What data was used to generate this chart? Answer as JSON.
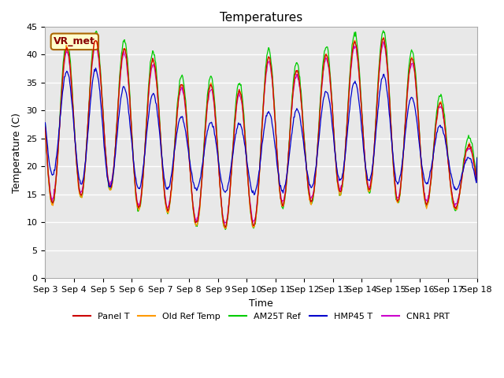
{
  "title": "Temperatures",
  "ylabel": "Temperature (C)",
  "xlabel": "Time",
  "ylim": [
    0,
    45
  ],
  "yticks": [
    0,
    5,
    10,
    15,
    20,
    25,
    30,
    35,
    40,
    45
  ],
  "annotation_text": "VR_met",
  "legend_labels": [
    "Panel T",
    "Old Ref Temp",
    "AM25T Ref",
    "HMP45 T",
    "CNR1 PRT"
  ],
  "legend_colors": [
    "#cc0000",
    "#ff9900",
    "#00cc00",
    "#0000cc",
    "#cc00cc"
  ],
  "background_color": "#ffffff",
  "plot_bg_color": "#e8e8e8",
  "grid_color": "#ffffff",
  "title_fontsize": 11,
  "axis_label_fontsize": 9,
  "tick_fontsize": 8,
  "x_tick_labels": [
    "Sep 3",
    "Sep 4",
    "Sep 5",
    "Sep 6",
    "Sep 7",
    "Sep 8",
    "Sep 9",
    "Sep 10",
    "Sep 11",
    "Sep 12",
    "Sep 13",
    "Sep 14",
    "Sep 15",
    "Sep 16",
    "Sep 17",
    "Sep 18"
  ],
  "daily_peaks": [
    40.5,
    41.5,
    43.0,
    40.5,
    38.5,
    33.5,
    35.0,
    33.0,
    41.5,
    35.5,
    41.5,
    42.5,
    43.0,
    38.0,
    29.0,
    22.0
  ],
  "daily_mins": [
    13.5,
    14.0,
    17.5,
    12.5,
    13.0,
    10.0,
    9.5,
    8.5,
    13.0,
    13.5,
    15.0,
    16.5,
    14.0,
    13.5,
    13.0,
    11.5
  ],
  "hmp_peaks": [
    37.0,
    37.0,
    37.5,
    33.0,
    33.0,
    27.5,
    28.0,
    27.5,
    30.5,
    30.0,
    34.5,
    35.5,
    36.5,
    31.0,
    26.0,
    20.0
  ],
  "hmp_mins": [
    19.0,
    17.0,
    16.5,
    16.0,
    16.0,
    16.0,
    15.5,
    15.0,
    15.5,
    16.0,
    17.5,
    17.5,
    17.0,
    17.0,
    17.0,
    13.0
  ]
}
